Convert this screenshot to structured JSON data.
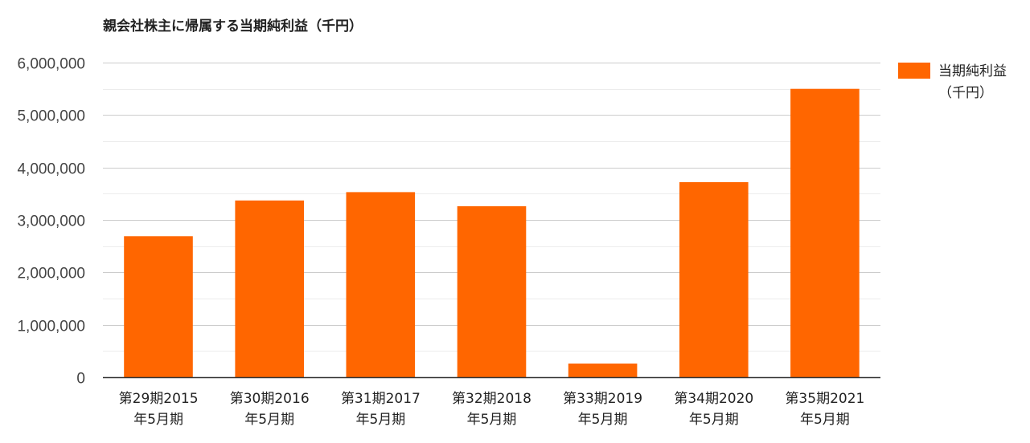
{
  "chart_data": {
    "type": "bar",
    "title": "親会社株主に帰属する当期純利益（千円）",
    "categories": [
      [
        "第29期2015",
        "年5月期"
      ],
      [
        "第30期2016",
        "年5月期"
      ],
      [
        "第31期2017",
        "年5月期"
      ],
      [
        "第32期2018",
        "年5月期"
      ],
      [
        "第33期2019",
        "年5月期"
      ],
      [
        "第34期2020",
        "年5月期"
      ],
      [
        "第35期2021",
        "年5月期"
      ]
    ],
    "series": [
      {
        "name": [
          "当期純利益",
          "（千円）"
        ],
        "color": "#FF6600",
        "values": [
          2690000,
          3370000,
          3530000,
          3260000,
          260000,
          3720000,
          5500000
        ]
      }
    ],
    "ylim": [
      0,
      6000000
    ],
    "yticks": [
      "0",
      "1,000,000",
      "2,000,000",
      "3,000,000",
      "4,000,000",
      "5,000,000",
      "6,000,000"
    ],
    "grid": true,
    "legend": "right"
  }
}
